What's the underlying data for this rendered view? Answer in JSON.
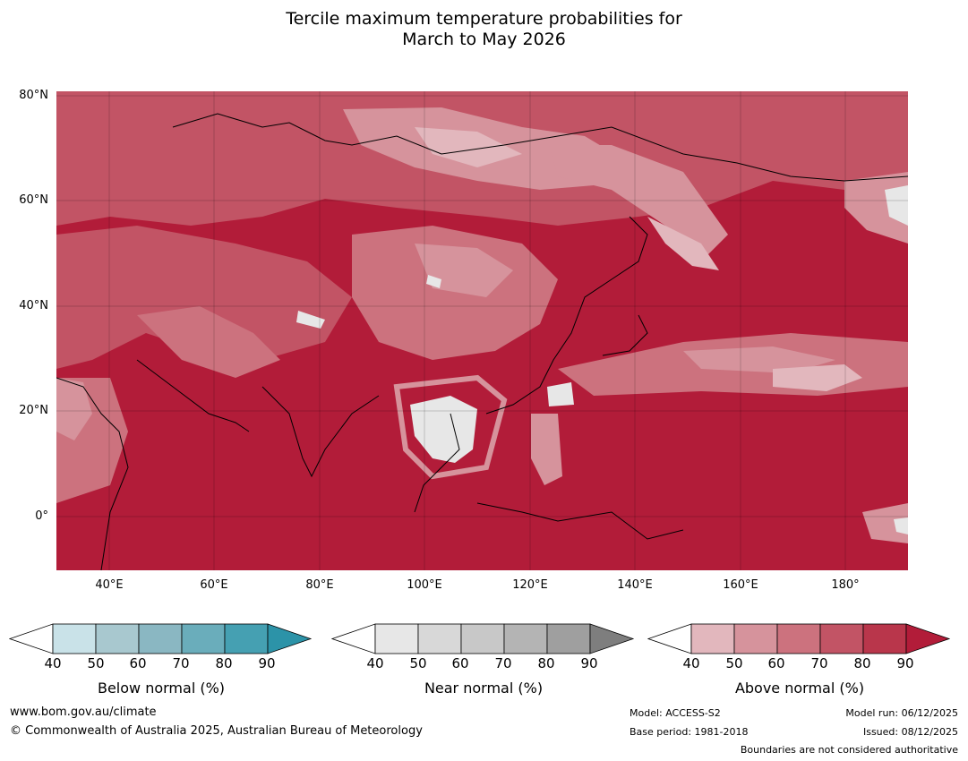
{
  "title_line1": "Tercile maximum temperature probabilities for",
  "title_line2": "March to May 2026",
  "lat_labels": [
    "80°N",
    "60°N",
    "40°N",
    "20°N",
    "0°"
  ],
  "lon_labels": [
    "40°E",
    "60°E",
    "80°E",
    "100°E",
    "120°E",
    "140°E",
    "160°E",
    "180°"
  ],
  "colorbars": [
    {
      "name": "Below normal (%)",
      "ticks": [
        "40",
        "50",
        "60",
        "70",
        "80",
        "90"
      ],
      "colors": [
        "#ffffff",
        "#c9e2e8",
        "#a8c8cf",
        "#8ab7c2",
        "#6aadbb",
        "#45a0b2",
        "#2c93a8"
      ]
    },
    {
      "name": "Near normal (%)",
      "ticks": [
        "40",
        "50",
        "60",
        "70",
        "80",
        "90"
      ],
      "colors": [
        "#ffffff",
        "#e7e7e7",
        "#d8d8d8",
        "#c8c8c8",
        "#b4b4b4",
        "#9f9f9f",
        "#7e7e7e"
      ]
    },
    {
      "name": "Above normal (%)",
      "ticks": [
        "40",
        "50",
        "60",
        "70",
        "80",
        "90"
      ],
      "colors": [
        "#ffffff",
        "#e2b7bd",
        "#d6939c",
        "#cc727e",
        "#c25465",
        "#b9364b",
        "#b21c39"
      ]
    }
  ],
  "footer": {
    "website": "www.bom.gov.au/climate",
    "copyright": "© Commonwealth of Australia 2025, Australian Bureau of Meteorology",
    "model": "Model: ACCESS-S2",
    "base_period": "Base period: 1981-2018",
    "model_run": "Model run: 06/12/2025",
    "issued": "Issued: 08/12/2025",
    "boundaries": "Boundaries are not considered authoritative"
  },
  "map_colors": {
    "base": "#b21c39",
    "level80": "#b9364b",
    "level70": "#c25465",
    "level60": "#cc727e",
    "level50": "#d6939c",
    "level40": "#e2b7bd",
    "near": "#e7e7e7"
  }
}
